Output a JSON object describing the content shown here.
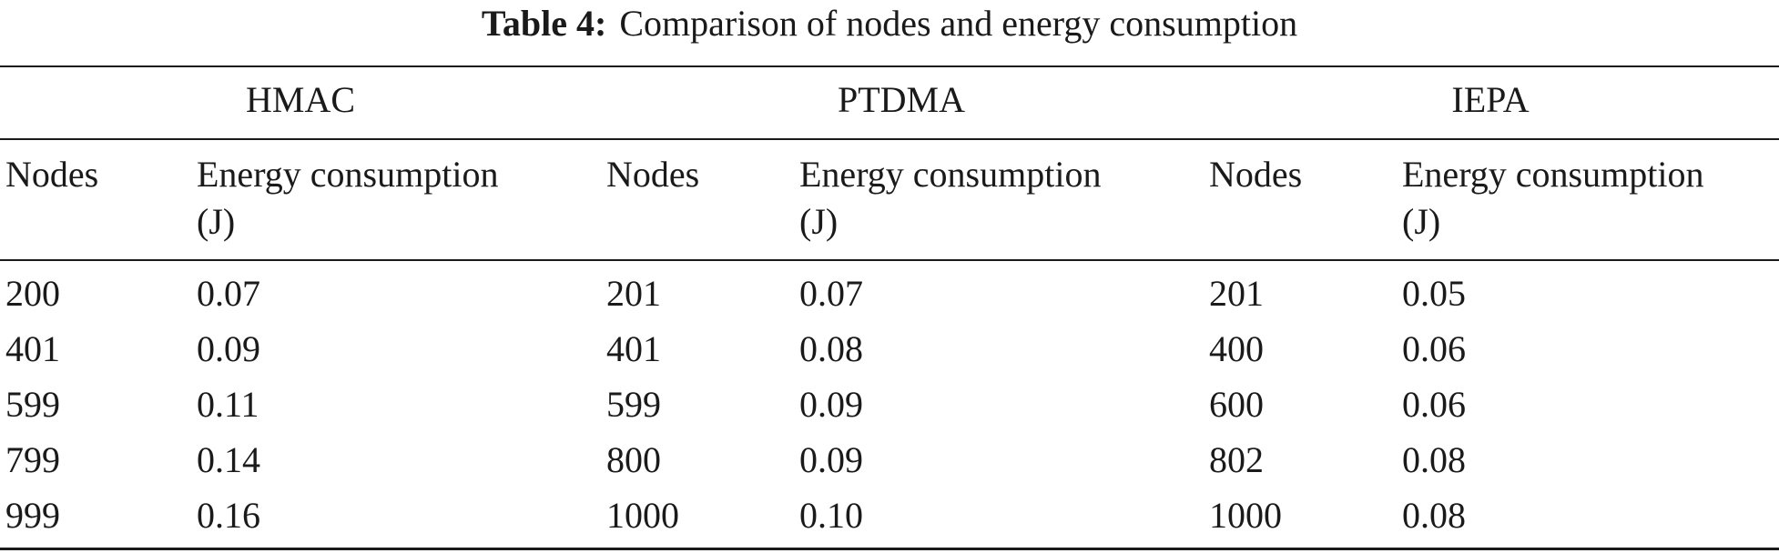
{
  "table": {
    "caption_label": "Table 4:",
    "caption_text": "Comparison of nodes and energy consumption",
    "groups": [
      "HMAC",
      "PTDMA",
      "IEPA"
    ],
    "headers": {
      "nodes": "Nodes",
      "energy_line1": "Energy consumption",
      "energy_line2": "(J)"
    },
    "rows": [
      [
        "200",
        "0.07",
        "201",
        "0.07",
        "201",
        "0.05"
      ],
      [
        "401",
        "0.09",
        "401",
        "0.08",
        "400",
        "0.06"
      ],
      [
        "599",
        "0.11",
        "599",
        "0.09",
        "600",
        "0.06"
      ],
      [
        "799",
        "0.14",
        "800",
        "0.09",
        "802",
        "0.08"
      ],
      [
        "999",
        "0.16",
        "1000",
        "0.10",
        "1000",
        "0.08"
      ]
    ]
  }
}
